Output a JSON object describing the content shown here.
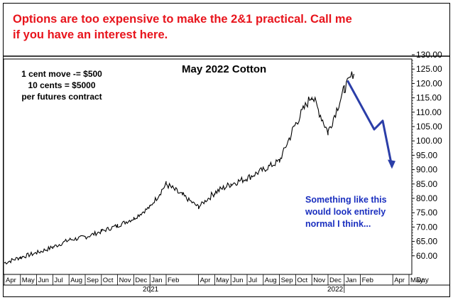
{
  "headline": {
    "line1": "Options are too expensive to make the 2&1 practical. Call me",
    "line2": "if you have an interest here."
  },
  "notes": {
    "left": [
      "1 cent move -= $500",
      "10 cents = $5000",
      "per futures contract"
    ],
    "right": [
      "Something like this",
      "would look entirely",
      "normal I think..."
    ]
  },
  "colors": {
    "headline": "#e8141c",
    "arrow": "#2b3ea8",
    "note_right": "#1a2fbf",
    "price_line": "#000000"
  },
  "chart_data": {
    "type": "line",
    "title": "May 2022 Cotton",
    "xlabel": "Day",
    "ylabel": "",
    "ylim": [
      55,
      130
    ],
    "grid": false,
    "x_tick_labels": [
      "Apr",
      "May",
      "Jun",
      "Jul",
      "Aug",
      "Sep",
      "Oct",
      "Nov",
      "Dec",
      "Jan",
      "Feb",
      "Apr",
      "May",
      "Jun",
      "Jul",
      "Aug",
      "Sep",
      "Oct",
      "Nov",
      "Dec",
      "Jan",
      "Feb",
      "Apr",
      "May"
    ],
    "year_labels": [
      "2021",
      "2022"
    ],
    "y_ticks": [
      "60.00",
      "65.00",
      "70.00",
      "75.00",
      "80.00",
      "85.00",
      "90.00",
      "95.00",
      "100.00",
      "105.00",
      "110.00",
      "115.00",
      "120.00",
      "125.00",
      "130.00"
    ],
    "series": [
      {
        "name": "",
        "points": [
          [
            "Apr 2020",
            57.5
          ],
          [
            "May 2020",
            59.5
          ],
          [
            "Jun 2020",
            61
          ],
          [
            "Jul 2020",
            63
          ],
          [
            "Aug 2020",
            65.5
          ],
          [
            "Sep 2020",
            66.5
          ],
          [
            "Oct 2020",
            68.5
          ],
          [
            "Nov 2020",
            70.5
          ],
          [
            "Dec 2020",
            73
          ],
          [
            "Jan 2021",
            77
          ],
          [
            "Feb 2021",
            85
          ],
          [
            "Mar 2021",
            81
          ],
          [
            "Apr 2021",
            77
          ],
          [
            "May 2021",
            82
          ],
          [
            "Jun 2021",
            85
          ],
          [
            "Jul 2021",
            87
          ],
          [
            "Aug 2021",
            90
          ],
          [
            "Sep 2021",
            93
          ],
          [
            "Oct 2021",
            106
          ],
          [
            "Nov 2021",
            116
          ],
          [
            "Dec 2021",
            103
          ],
          [
            "Jan 2022",
            118
          ],
          [
            "Jan 2022",
            124
          ]
        ]
      }
    ],
    "projection": [
      [
        "Jan 2022",
        121
      ],
      [
        "Feb 2022",
        104
      ],
      [
        "Feb 2022",
        107
      ],
      [
        "Mar 2022",
        91
      ]
    ]
  }
}
